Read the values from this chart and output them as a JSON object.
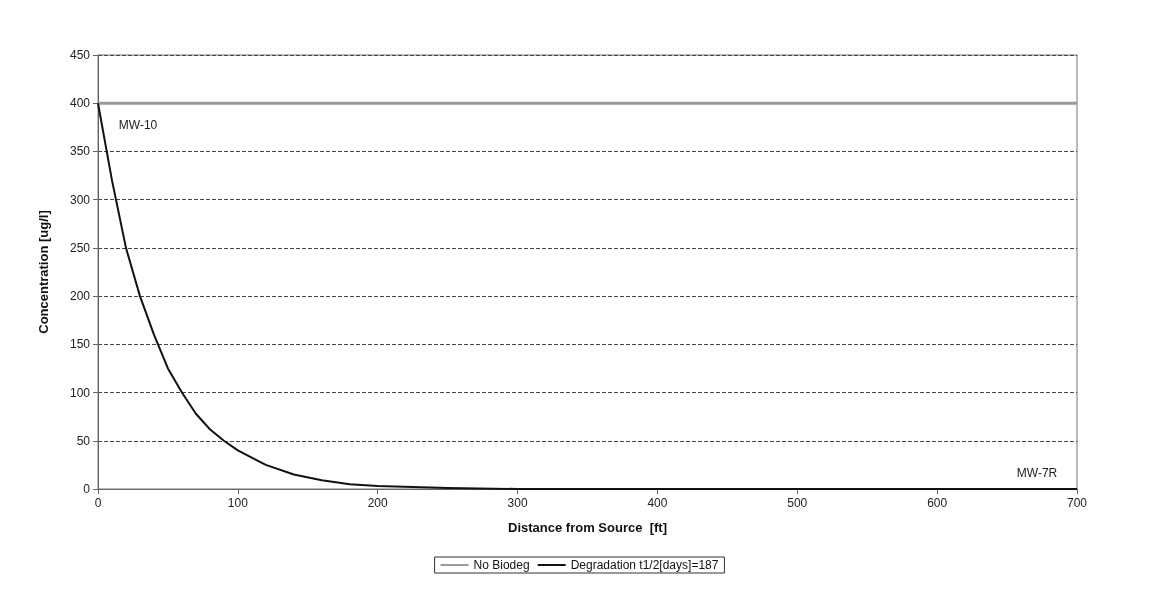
{
  "chart_data": {
    "type": "line",
    "xlabel": "Distance from Source  [ft]",
    "ylabel": "Concentration [ug/l]",
    "series": [
      {
        "name": "No Biodeg",
        "color": "#9a9a9a",
        "x": [
          0,
          700
        ],
        "values": [
          400,
          400
        ]
      },
      {
        "name": "Degradation t1/2[days]=187",
        "color": "#111111",
        "x": [
          0,
          10,
          20,
          30,
          40,
          50,
          60,
          70,
          80,
          90,
          100,
          120,
          140,
          160,
          180,
          200,
          250,
          300,
          400,
          500,
          600,
          700
        ],
        "values": [
          400,
          320,
          250,
          200,
          160,
          125,
          100,
          78,
          62,
          50,
          40,
          25,
          15,
          9,
          5,
          3,
          1,
          0,
          0,
          0,
          0,
          0
        ]
      }
    ],
    "xlim": [
      0,
      700
    ],
    "xticks": [
      0,
      100,
      200,
      300,
      400,
      500,
      600,
      700
    ],
    "ylim": [
      0,
      450
    ],
    "yticks": [
      0,
      50,
      100,
      150,
      200,
      250,
      300,
      350,
      400,
      450
    ],
    "grid": "y",
    "legend": "bottom",
    "marker": "none",
    "line_style": "solid",
    "annotations": [
      {
        "text": "MW-10",
        "x": 0,
        "y": 400
      },
      {
        "text": "MW-7R",
        "x": 700,
        "y": 0
      }
    ]
  }
}
